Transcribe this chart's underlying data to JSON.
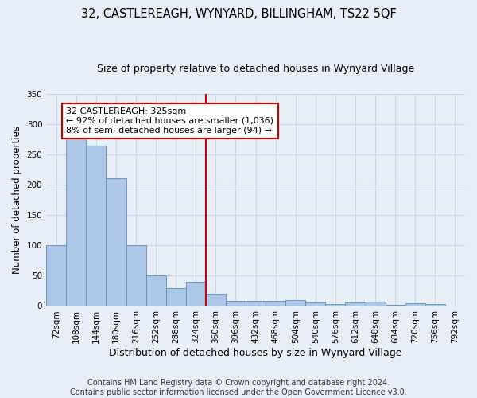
{
  "title": "32, CASTLEREAGH, WYNYARD, BILLINGHAM, TS22 5QF",
  "subtitle": "Size of property relative to detached houses in Wynyard Village",
  "xlabel": "Distribution of detached houses by size in Wynyard Village",
  "ylabel": "Number of detached properties",
  "bin_labels": [
    "72sqm",
    "108sqm",
    "144sqm",
    "180sqm",
    "216sqm",
    "252sqm",
    "288sqm",
    "324sqm",
    "360sqm",
    "396sqm",
    "432sqm",
    "468sqm",
    "504sqm",
    "540sqm",
    "576sqm",
    "612sqm",
    "648sqm",
    "684sqm",
    "720sqm",
    "756sqm",
    "792sqm"
  ],
  "bar_values": [
    100,
    287,
    265,
    210,
    101,
    51,
    30,
    40,
    20,
    8,
    8,
    8,
    10,
    6,
    3,
    6,
    7,
    2,
    4,
    3,
    0
  ],
  "bar_color": "#aec6e8",
  "bar_edge_color": "#5b8db8",
  "property_bin_index": 7,
  "property_label": "32 CASTLEREAGH: 325sqm",
  "annotation_line1": "← 92% of detached houses are smaller (1,036)",
  "annotation_line2": "8% of semi-detached houses are larger (94) →",
  "annotation_box_color": "#ffffff",
  "annotation_border_color": "#cc0000",
  "vline_color": "#cc0000",
  "ylim": [
    0,
    350
  ],
  "yticks": [
    0,
    50,
    100,
    150,
    200,
    250,
    300,
    350
  ],
  "grid_color": "#c8d4e8",
  "bg_color": "#e8eef8",
  "footer_line1": "Contains HM Land Registry data © Crown copyright and database right 2024.",
  "footer_line2": "Contains public sector information licensed under the Open Government Licence v3.0.",
  "title_fontsize": 10.5,
  "subtitle_fontsize": 9,
  "axis_label_fontsize": 8.5,
  "tick_fontsize": 7.5,
  "annotation_fontsize": 8,
  "footer_fontsize": 7
}
